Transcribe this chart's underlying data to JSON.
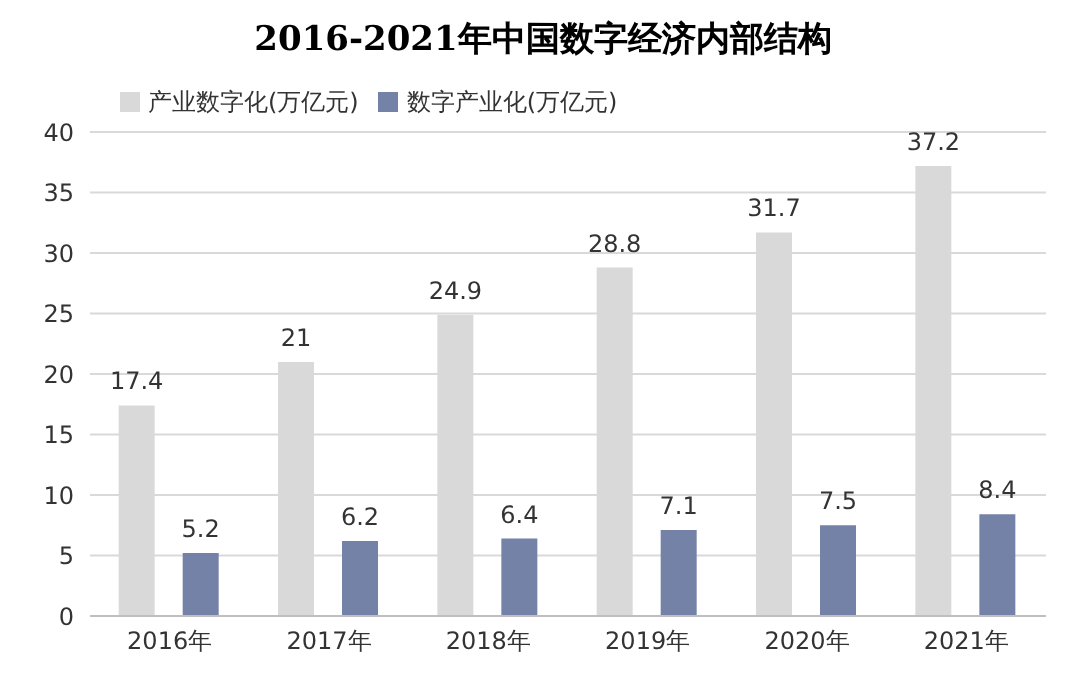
{
  "chart_data": {
    "type": "bar",
    "title": "2016-2021年中国数字经济内部结构",
    "categories": [
      "2016年",
      "2017年",
      "2018年",
      "2019年",
      "2020年",
      "2021年"
    ],
    "series": [
      {
        "name": "产业数字化(万亿元)",
        "color": "#d9d9d9",
        "values": [
          17.4,
          21,
          24.9,
          28.8,
          31.7,
          37.2
        ]
      },
      {
        "name": "数字产业化(万亿元)",
        "color": "#7582a8",
        "values": [
          5.2,
          6.2,
          6.4,
          7.1,
          7.5,
          8.4
        ]
      }
    ],
    "ylim": [
      0,
      40
    ],
    "yticks": [
      0,
      5,
      10,
      15,
      20,
      25,
      30,
      35,
      40
    ],
    "grid": "y",
    "legend": "top left",
    "data_labels": true
  }
}
